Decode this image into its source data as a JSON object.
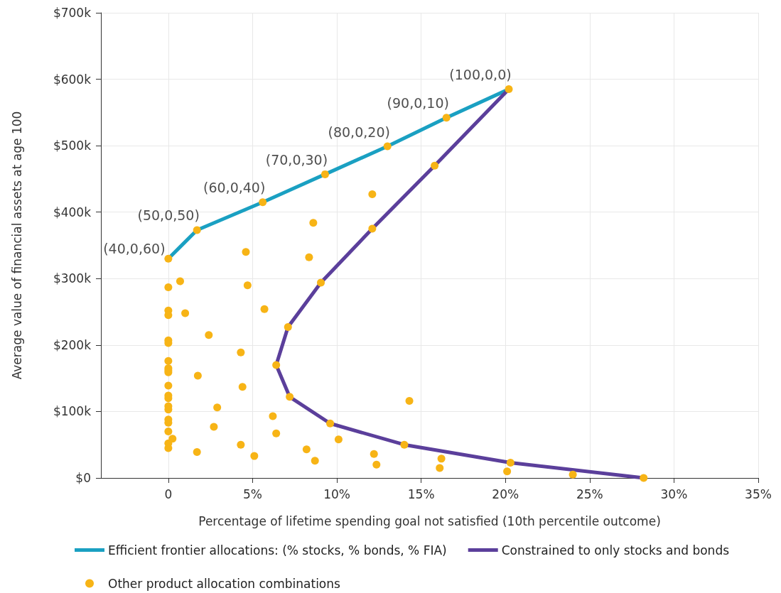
{
  "chart_data": {
    "type": "line",
    "xlabel": "Percentage of lifetime spending goal not satisfied (10th percentile outcome)",
    "ylabel": "Average value of financial assets at age 100",
    "xlim": [
      -4,
      35
    ],
    "xticks": [
      0,
      {
        "value": 5,
        "label": "5%"
      },
      {
        "value": 10,
        "label": "10%"
      },
      {
        "value": 15,
        "label": "15%"
      },
      {
        "value": 20,
        "label": "20%"
      },
      {
        "value": 25,
        "label": "25%"
      },
      {
        "value": 30,
        "label": "30%"
      },
      {
        "value": 35,
        "label": "35%"
      }
    ],
    "ylim": [
      0,
      700
    ],
    "yticks": [
      {
        "value": 0,
        "label": "$0"
      },
      {
        "value": 100,
        "label": "$100k"
      },
      {
        "value": 200,
        "label": "$200k"
      },
      {
        "value": 300,
        "label": "$300k"
      },
      {
        "value": 400,
        "label": "$400k"
      },
      {
        "value": 500,
        "label": "$500k"
      },
      {
        "value": 600,
        "label": "$600k"
      },
      {
        "value": 700,
        "label": "$700k"
      }
    ],
    "grid": true,
    "legend": "bottom",
    "series": [
      {
        "name": "Efficient frontier allocations: (% stocks, % bonds, % FIA)",
        "color": "#1aa0c2",
        "marker": "none",
        "line_style": "solid",
        "x": [
          0,
          1.7,
          5.6,
          9.3,
          13.0,
          16.5,
          20.2
        ],
        "values": [
          330,
          373,
          415,
          457,
          499,
          542,
          585
        ]
      },
      {
        "name": "Constrained to only stocks and bonds",
        "color": "#5b3f9b",
        "marker": "none",
        "line_style": "solid",
        "x": [
          20.2,
          15.8,
          12.1,
          9.05,
          7.1,
          6.4,
          7.2,
          9.6,
          14.0,
          20.3,
          28.2
        ],
        "values": [
          585,
          470,
          375,
          294,
          227,
          170,
          122,
          82,
          50,
          23,
          0
        ]
      },
      {
        "name": "Other product allocation combinations",
        "type": "scatter",
        "color": "#f7b416",
        "marker": "circle",
        "x": [
          0,
          1.7,
          5.6,
          9.3,
          13.0,
          16.5,
          20.2,
          15.8,
          12.1,
          9.05,
          7.1,
          6.4,
          7.2,
          9.6,
          14.0,
          20.3,
          28.2,
          12.1,
          8.6,
          4.6,
          8.35,
          0.7,
          0,
          4.7,
          0,
          0,
          1.0,
          5.7,
          2.4,
          0,
          0,
          4.3,
          0,
          0,
          0,
          0,
          1.75,
          4.4,
          0,
          0,
          0,
          14.3,
          0,
          0,
          2.9,
          6.2,
          0,
          0,
          2.7,
          0,
          6.4,
          10.1,
          0.25,
          0,
          0,
          4.3,
          1.7,
          5.1,
          8.2,
          12.2,
          8.7,
          12.35,
          16.2,
          16.1,
          20.1,
          24.0
        ],
        "values": [
          330,
          373,
          415,
          457,
          499,
          542,
          585,
          470,
          375,
          294,
          227,
          170,
          122,
          82,
          50,
          23,
          0,
          427,
          384,
          340,
          332,
          296,
          287,
          290,
          252,
          245,
          248,
          254,
          215,
          207,
          203,
          189,
          176,
          165,
          162,
          159,
          154,
          137,
          139,
          124,
          120,
          116,
          108,
          103,
          106,
          93,
          88,
          83,
          77,
          70,
          67,
          58,
          59,
          52,
          45,
          50,
          39,
          33,
          43,
          36,
          26,
          20,
          29,
          15,
          10,
          5
        ]
      }
    ],
    "annotations": [
      {
        "text": "(40,0,60)",
        "x": 0,
        "y": 330
      },
      {
        "text": "(50,0,50)",
        "x": 1.7,
        "y": 373
      },
      {
        "text": "(60,0,40)",
        "x": 5.6,
        "y": 415
      },
      {
        "text": "(70,0,30)",
        "x": 9.3,
        "y": 457
      },
      {
        "text": "(80,0,20)",
        "x": 13.0,
        "y": 499
      },
      {
        "text": "(90,0,10)",
        "x": 16.5,
        "y": 542
      },
      {
        "text": "(100,0,0)",
        "x": 20.2,
        "y": 585
      }
    ]
  }
}
